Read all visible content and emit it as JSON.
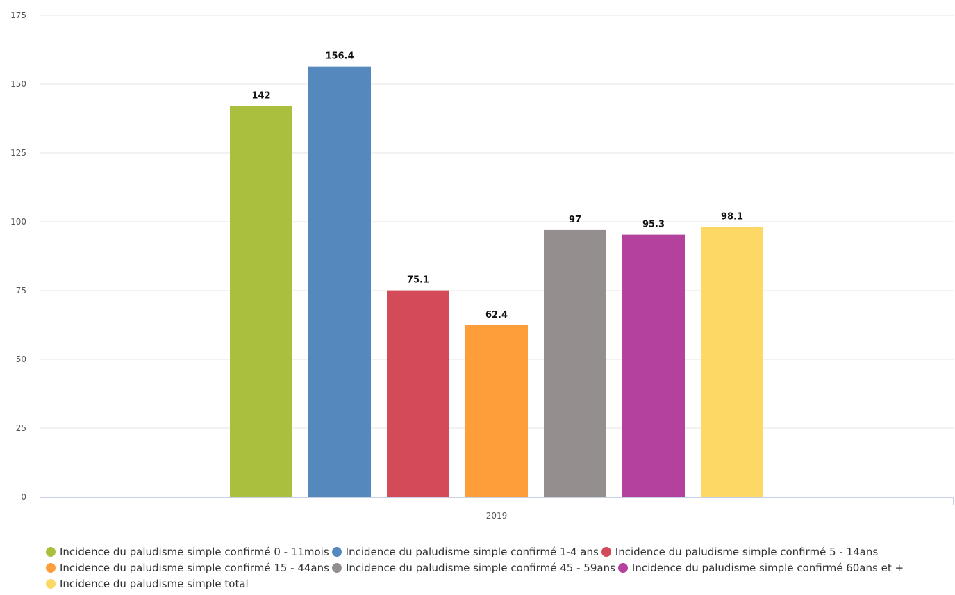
{
  "chart_data": {
    "type": "bar",
    "categories": [
      "2019"
    ],
    "series": [
      {
        "name": "Incidence du paludisme simple confirmé 0 - 11mois",
        "values": [
          142
        ],
        "color": "#a9bf3d"
      },
      {
        "name": "Incidence du paludisme simple confirmé 1-4 ans",
        "values": [
          156.4
        ],
        "color": "#5589bd"
      },
      {
        "name": "Incidence du paludisme simple confirmé 5 - 14ans",
        "values": [
          75.1
        ],
        "color": "#d34a58"
      },
      {
        "name": "Incidence du paludisme simple confirmé 15 - 44ans",
        "values": [
          62.4
        ],
        "color": "#fd9e3a"
      },
      {
        "name": "Incidence du paludisme simple confirmé 45 - 59ans",
        "values": [
          97
        ],
        "color": "#948f8e"
      },
      {
        "name": "Incidence du paludisme simple confirmé 60ans et +",
        "values": [
          95.3
        ],
        "color": "#b5419e"
      },
      {
        "name": "Incidence du paludisme simple total",
        "values": [
          98.1
        ],
        "color": "#fed864"
      }
    ],
    "data_labels": [
      "142",
      "156.4",
      "75.1",
      "62.4",
      "97",
      "95.3",
      "98.1"
    ],
    "yticks": [
      "0",
      "25",
      "50",
      "75",
      "100",
      "125",
      "150",
      "175"
    ],
    "ylim": [
      0,
      175
    ],
    "title": "",
    "xlabel": "",
    "ylabel": "",
    "grid": true,
    "legend_position": "bottom-left"
  }
}
